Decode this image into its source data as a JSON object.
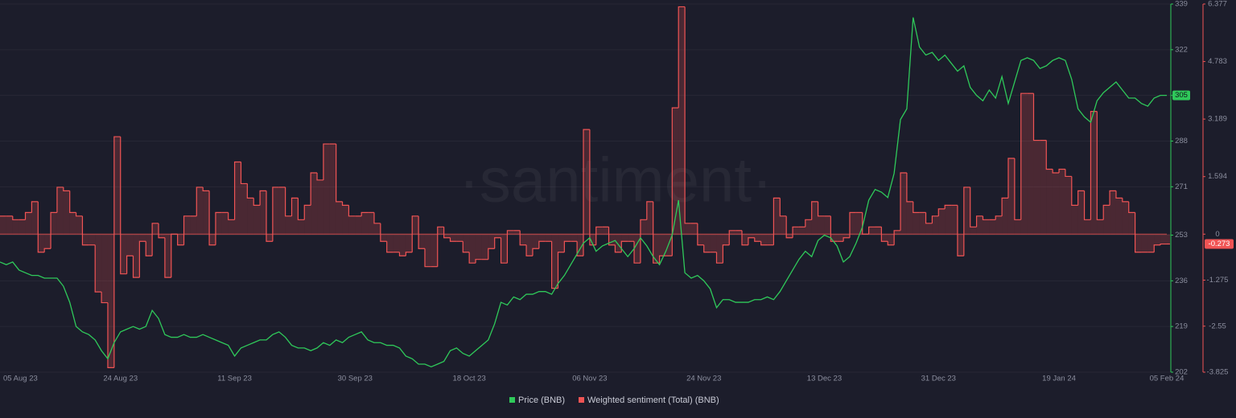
{
  "chart_data": {
    "type": "line",
    "watermark": "·santiment·",
    "categories": [
      "05 Aug 23",
      null,
      null,
      null,
      null,
      null,
      null,
      null,
      null,
      null,
      null,
      null,
      null,
      null,
      null,
      null,
      null,
      null,
      null,
      "24 Aug 23",
      null,
      null,
      null,
      null,
      null,
      null,
      null,
      null,
      null,
      null,
      null,
      null,
      null,
      null,
      null,
      null,
      null,
      "11 Sep 23",
      null,
      null,
      null,
      null,
      null,
      null,
      null,
      null,
      null,
      null,
      null,
      null,
      null,
      null,
      null,
      null,
      null,
      null,
      "30 Sep 23",
      null,
      null,
      null,
      null,
      null,
      null,
      null,
      null,
      null,
      null,
      null,
      null,
      null,
      null,
      null,
      null,
      null,
      "18 Oct 23",
      null,
      null,
      null,
      null,
      null,
      null,
      null,
      null,
      null,
      null,
      null,
      null,
      null,
      null,
      null,
      null,
      null,
      null,
      "06 Nov 23",
      null,
      null,
      null,
      null,
      null,
      null,
      null,
      null,
      null,
      null,
      null,
      null,
      null,
      null,
      null,
      null,
      null,
      "24 Nov 23",
      null,
      null,
      null,
      null,
      null,
      null,
      null,
      null,
      null,
      null,
      null,
      null,
      null,
      null,
      null,
      null,
      null,
      null,
      "13 Dec 23",
      null,
      null,
      null,
      null,
      null,
      null,
      null,
      null,
      null,
      null,
      null,
      null,
      null,
      null,
      null,
      null,
      null,
      "31 Dec 23",
      null,
      null,
      null,
      null,
      null,
      null,
      null,
      null,
      null,
      null,
      null,
      null,
      null,
      null,
      null,
      null,
      null,
      null,
      "19 Jan 24",
      null,
      null,
      null,
      null,
      null,
      null,
      null,
      null,
      null,
      null,
      null,
      null,
      null,
      null,
      null,
      null,
      "05 Feb 24"
    ],
    "series": [
      {
        "name": "Price (BNB)",
        "color": "#2fc95a",
        "axis": "y",
        "current_value": 305,
        "values": [
          243,
          242,
          243,
          240,
          239,
          238,
          238,
          237,
          237,
          237,
          234,
          228,
          219,
          217,
          216,
          214,
          210,
          207,
          213,
          217,
          218,
          219,
          218,
          219,
          225,
          222,
          216,
          215,
          215,
          216,
          215,
          215,
          216,
          215,
          214,
          213,
          212,
          208,
          211,
          212,
          213,
          214,
          214,
          216,
          217,
          215,
          212,
          211,
          211,
          210,
          211,
          213,
          212,
          214,
          213,
          215,
          216,
          217,
          214,
          213,
          213,
          212,
          212,
          211,
          208,
          207,
          205,
          205,
          204,
          205,
          206,
          210,
          211,
          209,
          208,
          210,
          212,
          214,
          220,
          228,
          227,
          230,
          229,
          231,
          231,
          232,
          232,
          231,
          235,
          238,
          242,
          246,
          250,
          252,
          247,
          249,
          250,
          251,
          248,
          245,
          248,
          252,
          249,
          245,
          242,
          247,
          253,
          266,
          239,
          237,
          238,
          236,
          233,
          226,
          229,
          229,
          228,
          228,
          228,
          229,
          229,
          230,
          229,
          232,
          236,
          240,
          244,
          247,
          245,
          251,
          253,
          252,
          249,
          243,
          245,
          250,
          256,
          266,
          270,
          269,
          267,
          276,
          296,
          300,
          334,
          323,
          320,
          321,
          318,
          320,
          317,
          314,
          316,
          308,
          305,
          303,
          307,
          304,
          312,
          302,
          310,
          318,
          319,
          318,
          315,
          316,
          318,
          319,
          318,
          311,
          300,
          297,
          295,
          303,
          306,
          308,
          310,
          307,
          304,
          304,
          302,
          301,
          304,
          305,
          305
        ]
      },
      {
        "name": "Weighted sentiment (Total) (BNB)",
        "color": "#f05454",
        "axis": "y2",
        "current_value": -0.273,
        "values": [
          0.5,
          0.5,
          0.4,
          0.4,
          0.6,
          0.9,
          -0.5,
          -0.4,
          0.6,
          1.3,
          1.2,
          0.6,
          0.5,
          -0.3,
          -0.3,
          -1.6,
          -1.9,
          -3.7,
          2.7,
          -1.1,
          -0.6,
          -1.2,
          -0.2,
          -0.6,
          0.3,
          -0.1,
          -1.2,
          0,
          -0.3,
          0.5,
          0.5,
          1.3,
          1.2,
          -0.3,
          0.6,
          0.6,
          0.4,
          2.0,
          1.4,
          1.0,
          0.8,
          1.2,
          -0.2,
          1.3,
          1.3,
          0.5,
          1.0,
          0.4,
          0.8,
          1.7,
          1.5,
          2.5,
          2.5,
          0.9,
          0.8,
          0.5,
          0.5,
          0.6,
          0.6,
          0.3,
          -0.2,
          -0.5,
          -0.5,
          -0.6,
          -0.5,
          0.5,
          -0.4,
          -0.9,
          -0.9,
          0.2,
          -0.1,
          -0.2,
          -0.2,
          -0.5,
          -0.8,
          -0.7,
          -0.7,
          -0.4,
          -0.1,
          -0.8,
          0.1,
          0.1,
          -0.3,
          -0.6,
          -0.4,
          -0.2,
          -0.2,
          -1.5,
          -0.5,
          -0.2,
          -0.2,
          -0.6,
          2.9,
          -0.3,
          0.2,
          0.2,
          -0.3,
          -0.5,
          -0.2,
          -0.2,
          -0.8,
          0.4,
          0.9,
          -0.8,
          -0.6,
          -0.6,
          3.5,
          6.3,
          0.3,
          0.3,
          -0.3,
          -0.5,
          -0.5,
          -0.8,
          -0.3,
          0.1,
          0.1,
          -0.3,
          -0.1,
          -0.2,
          -0.3,
          -0.3,
          1.0,
          0.5,
          -0.1,
          0.2,
          0.2,
          0.4,
          0.9,
          0.5,
          0.5,
          -0.2,
          -0.2,
          -0.1,
          0.6,
          0.6,
          0,
          0.2,
          0.2,
          -0.2,
          -0.3,
          0.1,
          1.7,
          0.9,
          0.6,
          0.6,
          0.3,
          0.5,
          0.7,
          0.8,
          0.8,
          -0.6,
          1.3,
          0.2,
          0.5,
          0.4,
          0.4,
          0.5,
          1.0,
          2.1,
          0.4,
          3.9,
          3.9,
          2.6,
          2.6,
          1.8,
          1.7,
          1.8,
          1.6,
          0.8,
          1.2,
          0.4,
          3.4,
          0.4,
          0.8,
          1.2,
          1.0,
          0.9,
          0.6,
          -0.5,
          -0.5,
          -0.5,
          -0.3,
          -0.273,
          -0.273
        ]
      }
    ],
    "ylim": [
      202,
      339
    ],
    "yticks": [
      202,
      219,
      236,
      253,
      271,
      288,
      305,
      322,
      339
    ],
    "y2lim": [
      -3.825,
      6.377
    ],
    "y2ticks": [
      -3.825,
      -2.55,
      -1.275,
      0,
      1.594,
      3.189,
      4.783,
      6.377
    ],
    "grid": true,
    "legend": "bottom"
  }
}
